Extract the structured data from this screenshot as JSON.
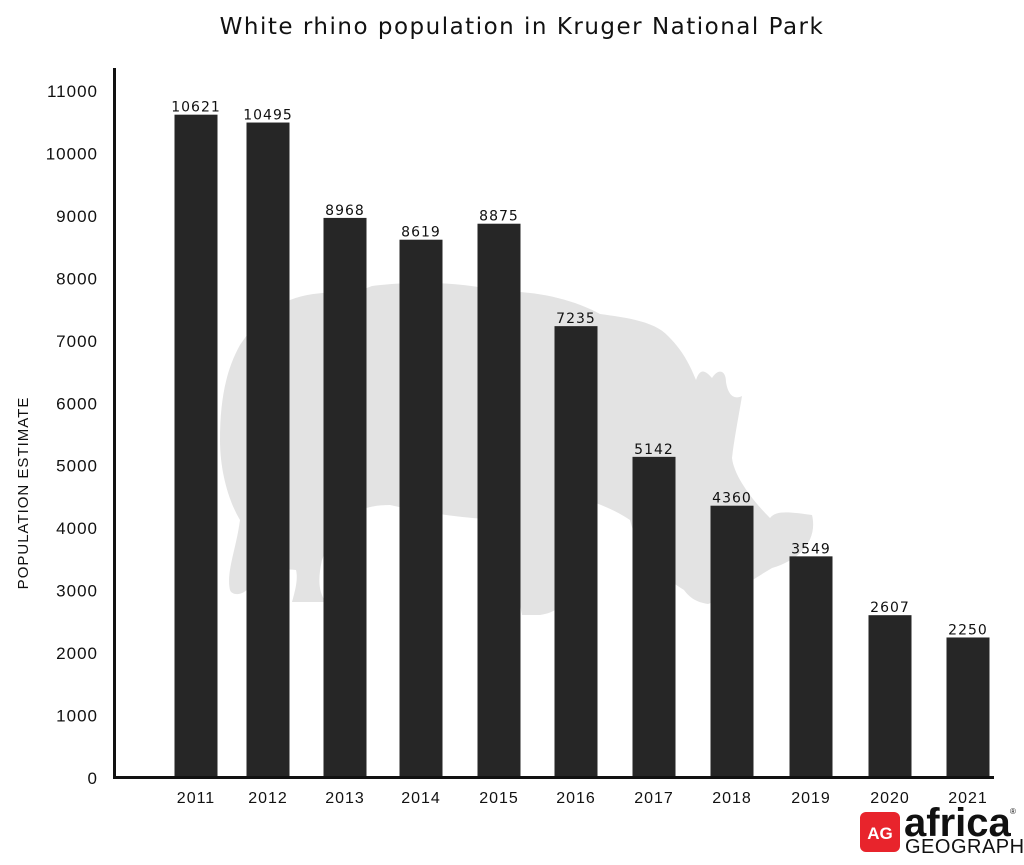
{
  "chart_data": {
    "type": "bar",
    "title": "White rhino population in Kruger National Park",
    "xlabel": "",
    "ylabel": "POPULATION ESTIMATE",
    "categories": [
      "2011",
      "2012",
      "2013",
      "2014",
      "2015",
      "2016",
      "2017",
      "2018",
      "2019",
      "2020",
      "2021"
    ],
    "values": [
      10621,
      10495,
      8968,
      8619,
      8875,
      7235,
      5142,
      4360,
      3549,
      2607,
      2250
    ],
    "value_labels": [
      "10621",
      "10495",
      "8968",
      "8619",
      "8875",
      "7235",
      "5142",
      "4360",
      "3549",
      "2607",
      "2250"
    ],
    "yticks": [
      "0",
      "1000",
      "2000",
      "3000",
      "4000",
      "5000",
      "6000",
      "7000",
      "8000",
      "9000",
      "10000",
      "11000"
    ],
    "ylim": [
      0,
      11000
    ],
    "grid": false,
    "legend": "none",
    "bar_color": "#262626",
    "background_graphic": "rhino-silhouette",
    "background_graphic_color": "#e3e3e3"
  },
  "logo": {
    "badge": "AG",
    "word": "africa",
    "sub": "GEOGRAPHIC",
    "mark": "®",
    "badge_color": "#e8242c"
  }
}
